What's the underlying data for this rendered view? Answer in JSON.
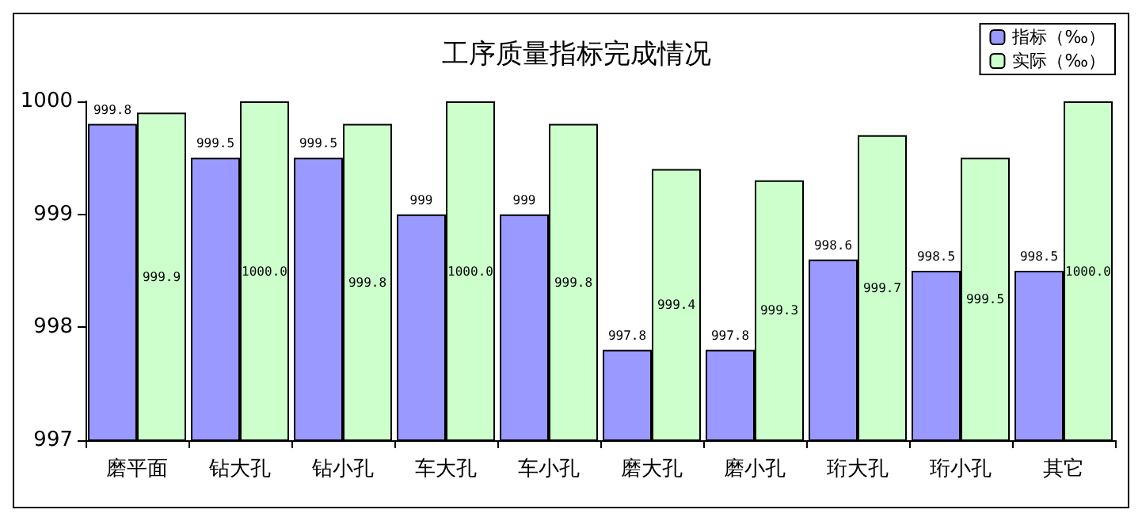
{
  "chart_data": {
    "type": "bar",
    "title": "工序质量指标完成情况",
    "categories": [
      "磨平面",
      "钻大孔",
      "钻小孔",
      "车大孔",
      "车小孔",
      "磨大孔",
      "磨小孔",
      "珩大孔",
      "珩小孔",
      "其它"
    ],
    "series": [
      {
        "name": "指标（‰）",
        "color": "#9999ff",
        "values": [
          999.8,
          999.5,
          999.5,
          999,
          999,
          997.8,
          997.8,
          998.6,
          998.5,
          998.5
        ],
        "value_labels": [
          "999.8",
          "999.5",
          "999.5",
          "999",
          "999",
          "997.8",
          "997.8",
          "998.6",
          "998.5",
          "998.5"
        ]
      },
      {
        "name": "实际（‰）",
        "color": "#ccffcc",
        "values": [
          999.9,
          1000.0,
          999.8,
          1000.0,
          999.8,
          999.4,
          999.3,
          999.7,
          999.5,
          1000.0
        ],
        "value_labels": [
          "999.9",
          "1000.0",
          "999.8",
          "1000.0",
          "999.8",
          "999.4",
          "999.3",
          "999.7",
          "999.5",
          "1000.0"
        ]
      }
    ],
    "ylim": [
      997,
      1000
    ],
    "yticks": [
      997,
      998,
      999,
      1000
    ],
    "grid": false,
    "legend": "top right"
  }
}
